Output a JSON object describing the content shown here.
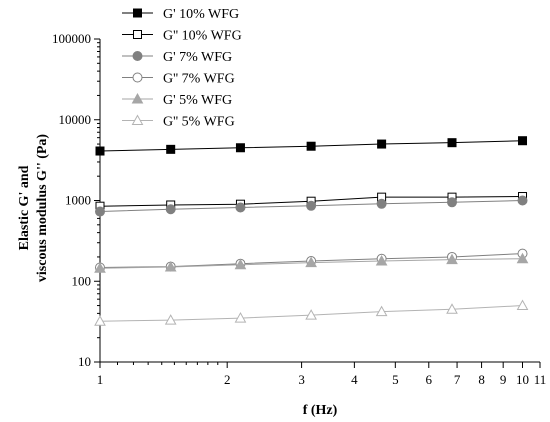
{
  "chart_data": {
    "type": "line",
    "xlabel": "f (Hz)",
    "ylabel": [
      "Elastic G' and",
      "viscous modulus G'' (Pa)"
    ],
    "x_scale": "log",
    "y_scale": "log",
    "xlim": [
      1,
      11
    ],
    "ylim": [
      10,
      100000
    ],
    "x_ticks": [
      1,
      2,
      3,
      4,
      5,
      6,
      7,
      8,
      9,
      10,
      11
    ],
    "x_tick_labels": [
      "1",
      "2",
      "3",
      "4",
      "5",
      "6",
      "7",
      "8",
      "9",
      "10",
      "11"
    ],
    "y_ticks": [
      10,
      100,
      1000,
      10000,
      100000
    ],
    "y_tick_labels": [
      "10",
      "100",
      "1000",
      "10000",
      "100000"
    ],
    "grid": false,
    "legend_position": "top-left",
    "x": [
      1,
      1.47,
      2.15,
      3.16,
      4.64,
      6.81,
      10
    ],
    "series": [
      {
        "name": "G' 10% WFG",
        "marker": "square",
        "filled": true,
        "color": "#000000",
        "values": [
          4100,
          4300,
          4500,
          4700,
          5000,
          5200,
          5500
        ]
      },
      {
        "name": "G'' 10% WFG",
        "marker": "square",
        "filled": false,
        "color": "#000000",
        "values": [
          850,
          880,
          900,
          980,
          1100,
          1100,
          1120
        ]
      },
      {
        "name": "G' 7% WFG",
        "marker": "circle",
        "filled": true,
        "color": "#808080",
        "values": [
          730,
          780,
          820,
          860,
          910,
          950,
          1000
        ]
      },
      {
        "name": "G'' 7% WFG",
        "marker": "circle",
        "filled": false,
        "color": "#808080",
        "values": [
          148,
          152,
          165,
          178,
          190,
          200,
          220
        ]
      },
      {
        "name": "G' 5% WFG",
        "marker": "triangle",
        "filled": true,
        "color": "#a6a6a6",
        "values": [
          145,
          150,
          160,
          170,
          178,
          185,
          190
        ]
      },
      {
        "name": "G'' 5% WFG",
        "marker": "triangle",
        "filled": false,
        "color": "#b3b3b3",
        "values": [
          32,
          33,
          35,
          38,
          42,
          45,
          50
        ]
      }
    ]
  }
}
